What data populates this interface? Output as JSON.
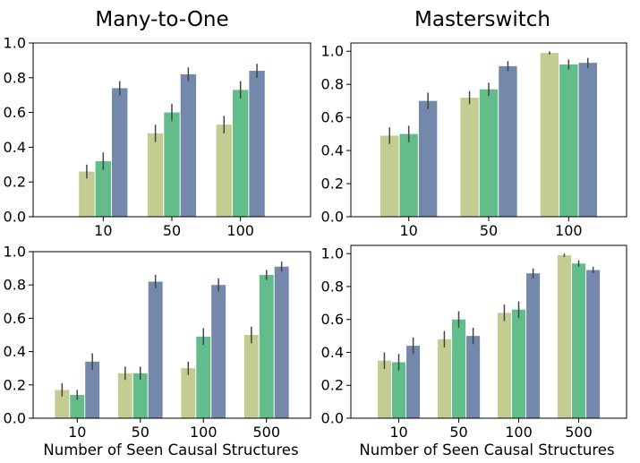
{
  "figure": {
    "titles": [
      "Many-to-One",
      "Masterswitch"
    ],
    "xlabel": "Number of Seen Causal Structures"
  },
  "colors": {
    "series": [
      "#c4cd91",
      "#63bd8a",
      "#7388ab"
    ],
    "errorbar": "#444444"
  },
  "chart_data": [
    {
      "type": "bar",
      "title": "Many-to-One",
      "xlabel": "",
      "ylim": [
        0,
        1.0
      ],
      "yticks": [
        "0.0",
        "0.2",
        "0.4",
        "0.6",
        "0.8",
        "1.0"
      ],
      "categories": [
        "10",
        "50",
        "100"
      ],
      "series": [
        {
          "values": [
            0.26,
            0.48,
            0.53
          ],
          "errors": [
            0.04,
            0.05,
            0.05
          ]
        },
        {
          "values": [
            0.32,
            0.6,
            0.73
          ],
          "errors": [
            0.05,
            0.05,
            0.05
          ]
        },
        {
          "values": [
            0.74,
            0.82,
            0.84
          ],
          "errors": [
            0.04,
            0.04,
            0.04
          ]
        }
      ],
      "grid": false
    },
    {
      "type": "bar",
      "title": "Masterswitch",
      "xlabel": "",
      "ylim": [
        0,
        1.05
      ],
      "yticks": [
        "0.0",
        "0.2",
        "0.4",
        "0.6",
        "0.8",
        "1.0"
      ],
      "categories": [
        "10",
        "50",
        "100"
      ],
      "series": [
        {
          "values": [
            0.49,
            0.72,
            0.99
          ],
          "errors": [
            0.05,
            0.04,
            0.01
          ]
        },
        {
          "values": [
            0.5,
            0.77,
            0.92
          ],
          "errors": [
            0.05,
            0.04,
            0.03
          ]
        },
        {
          "values": [
            0.7,
            0.91,
            0.93
          ],
          "errors": [
            0.05,
            0.03,
            0.03
          ]
        }
      ],
      "grid": false
    },
    {
      "type": "bar",
      "title": "",
      "xlabel": "Number of Seen Causal Structures",
      "ylim": [
        0,
        1.0
      ],
      "yticks": [
        "0.0",
        "0.2",
        "0.4",
        "0.6",
        "0.8",
        "1.0"
      ],
      "categories": [
        "10",
        "50",
        "100",
        "500"
      ],
      "series": [
        {
          "values": [
            0.17,
            0.27,
            0.3,
            0.5
          ],
          "errors": [
            0.04,
            0.04,
            0.04,
            0.05
          ]
        },
        {
          "values": [
            0.14,
            0.27,
            0.49,
            0.86
          ],
          "errors": [
            0.03,
            0.04,
            0.05,
            0.03
          ]
        },
        {
          "values": [
            0.34,
            0.82,
            0.8,
            0.91
          ],
          "errors": [
            0.05,
            0.04,
            0.04,
            0.03
          ]
        }
      ],
      "grid": false
    },
    {
      "type": "bar",
      "title": "",
      "xlabel": "Number of Seen Causal Structures",
      "ylim": [
        0,
        1.05
      ],
      "yticks": [
        "0.0",
        "0.2",
        "0.4",
        "0.6",
        "0.8",
        "1.0"
      ],
      "categories": [
        "10",
        "50",
        "100",
        "500"
      ],
      "series": [
        {
          "values": [
            0.35,
            0.48,
            0.64,
            0.99
          ],
          "errors": [
            0.05,
            0.05,
            0.05,
            0.01
          ]
        },
        {
          "values": [
            0.34,
            0.6,
            0.66,
            0.94
          ],
          "errors": [
            0.05,
            0.05,
            0.05,
            0.02
          ]
        },
        {
          "values": [
            0.44,
            0.5,
            0.88,
            0.9
          ],
          "errors": [
            0.05,
            0.05,
            0.03,
            0.02
          ]
        }
      ],
      "grid": false
    }
  ]
}
